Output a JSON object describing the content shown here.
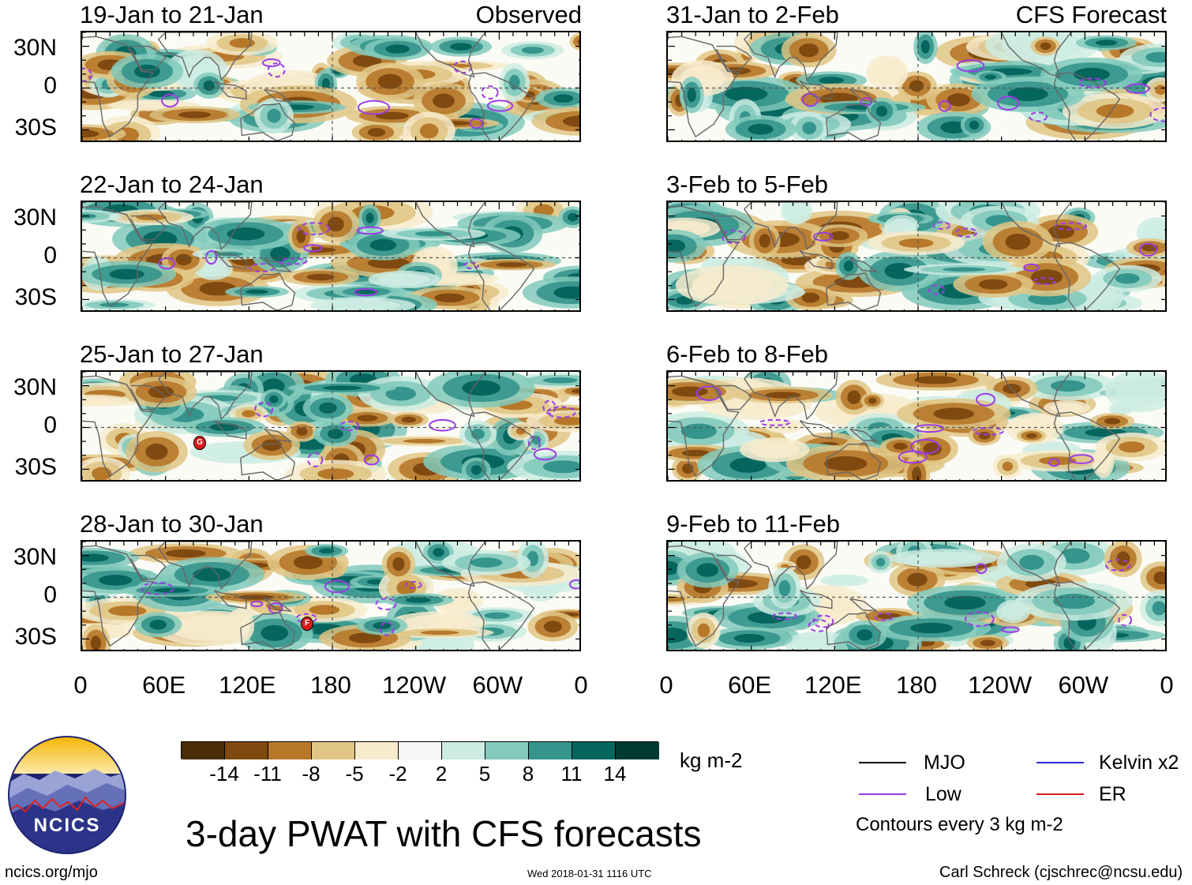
{
  "panels_left": [
    {
      "title": "19-Jan to 21-Jan",
      "tag": "Observed"
    },
    {
      "title": "22-Jan to 24-Jan",
      "tag": ""
    },
    {
      "title": "25-Jan to 27-Jan",
      "tag": ""
    },
    {
      "title": "28-Jan to 30-Jan",
      "tag": ""
    }
  ],
  "panels_right": [
    {
      "title": "31-Jan to 2-Feb",
      "tag": "CFS Forecast"
    },
    {
      "title": "3-Feb to 5-Feb",
      "tag": ""
    },
    {
      "title": "6-Feb to 8-Feb",
      "tag": ""
    },
    {
      "title": "9-Feb to 11-Feb",
      "tag": ""
    }
  ],
  "lat_labels": [
    "30N",
    "0",
    "30S"
  ],
  "lon_labels": [
    "0",
    "60E",
    "120E",
    "180",
    "120W",
    "60W",
    "0"
  ],
  "storm_markers": [
    {
      "panel": 2,
      "label": "G"
    },
    {
      "panel": 3,
      "label": "F"
    }
  ],
  "colorbar": {
    "colors": [
      "#4a2c06",
      "#7f4910",
      "#b7782a",
      "#e0c585",
      "#f7ebcc",
      "#f7f7f7",
      "#cdece3",
      "#83cabc",
      "#35958c",
      "#05665e",
      "#013a32"
    ],
    "ticks": [
      "-14",
      "-11",
      "-8",
      "-5",
      "-2",
      "2",
      "5",
      "8",
      "11",
      "14"
    ],
    "units": "kg m-2"
  },
  "legend": {
    "items": [
      {
        "label": "MJO",
        "color": "#000000"
      },
      {
        "label": "Kelvin x2",
        "color": "#2a2ae0"
      },
      {
        "label": "Low",
        "color": "#9b3ce6"
      },
      {
        "label": "ER",
        "color": "#d81b1b"
      }
    ],
    "note": "Contours every 3 kg m-2"
  },
  "logo_text": "NCICS",
  "main_title": "3-day PWAT with CFS forecasts",
  "footer": {
    "url": "ncics.org/mjo",
    "timestamp": "Wed 2018-01-31 1116 UTC",
    "credit": "Carl Schreck (cjschrec@ncsu.edu)"
  }
}
